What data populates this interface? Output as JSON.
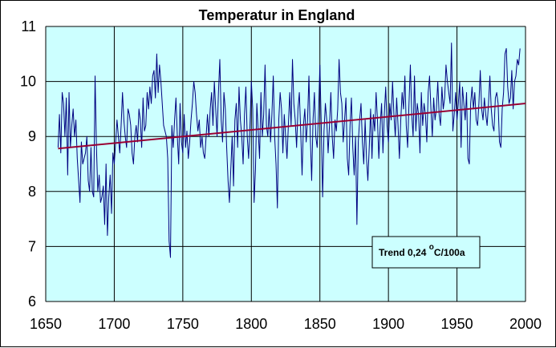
{
  "chart_data": {
    "type": "line",
    "title": "Temperatur in England",
    "xlabel": "",
    "ylabel": "",
    "xlim": [
      1650,
      2000
    ],
    "ylim": [
      6,
      11
    ],
    "x_ticks": [
      "1650",
      "1700",
      "1750",
      "1800",
      "1850",
      "1900",
      "1950",
      "2000"
    ],
    "y_ticks": [
      "6",
      "7",
      "8",
      "9",
      "10",
      "11"
    ],
    "grid": true,
    "legend": "none",
    "plot_background": "#ccffff",
    "annotation": {
      "prefix": "Trend 0,24 ",
      "superscript": "o",
      "suffix": "C/100a"
    },
    "series": [
      {
        "color": "#000080",
        "x_start": 1659,
        "x_step": 1,
        "values": [
          8.8,
          9.4,
          8.7,
          9.8,
          9.6,
          9.0,
          9.7,
          8.3,
          9.8,
          8.8,
          9.2,
          9.5,
          9.0,
          9.3,
          8.6,
          8.2,
          7.8,
          8.9,
          8.5,
          8.6,
          8.7,
          9.0,
          8.2,
          8.0,
          8.8,
          8.0,
          7.9,
          10.1,
          8.8,
          8.0,
          8.3,
          7.8,
          7.9,
          8.1,
          7.4,
          8.5,
          7.2,
          7.9,
          8.3,
          7.6,
          8.7,
          8.5,
          8.9,
          9.3,
          9.0,
          8.7,
          9.2,
          9.8,
          9.3,
          9.0,
          8.8,
          9.5,
          9.4,
          9.2,
          8.7,
          8.5,
          9.0,
          9.2,
          8.9,
          9.5,
          9.3,
          8.8,
          9.7,
          9.1,
          9.2,
          9.8,
          9.5,
          9.9,
          9.6,
          10.1,
          10.2,
          9.7,
          10.5,
          9.8,
          10.3,
          10.0,
          9.6,
          9.2,
          9.1,
          9.0,
          8.6,
          7.1,
          6.8,
          9.2,
          8.8,
          9.3,
          9.7,
          9.0,
          8.5,
          9.6,
          8.9,
          8.7,
          9.4,
          8.8,
          9.1,
          8.6,
          8.9,
          9.3,
          9.6,
          10.0,
          9.8,
          9.4,
          9.1,
          9.3,
          8.8,
          9.0,
          8.7,
          8.6,
          9.0,
          9.4,
          9.0,
          9.5,
          9.8,
          9.2,
          10.0,
          9.5,
          9.0,
          9.8,
          10.4,
          9.3,
          8.9,
          9.8,
          9.5,
          8.8,
          8.2,
          7.8,
          8.4,
          9.0,
          8.1,
          9.3,
          9.6,
          8.8,
          9.9,
          9.3,
          9.0,
          8.5,
          9.4,
          9.9,
          9.0,
          8.6,
          9.2,
          10.0,
          9.5,
          7.8,
          8.4,
          9.6,
          9.1,
          8.6,
          9.8,
          9.0,
          9.4,
          10.3,
          9.2,
          9.0,
          9.5,
          8.9,
          9.4,
          10.1,
          9.0,
          8.5,
          7.7,
          9.3,
          9.8,
          9.5,
          8.7,
          9.4,
          9.0,
          8.6,
          9.2,
          9.8,
          9.2,
          10.4,
          9.6,
          9.3,
          8.8,
          9.5,
          9.8,
          9.1,
          8.3,
          9.2,
          9.5,
          8.9,
          9.3,
          10.1,
          9.0,
          8.2,
          9.3,
          9.8,
          9.0,
          8.8,
          9.4,
          10.3,
          9.2,
          7.9,
          9.1,
          9.6,
          9.3,
          8.7,
          9.2,
          9.8,
          9.0,
          8.6,
          9.3,
          9.1,
          9.5,
          10.4,
          9.8,
          9.6,
          8.9,
          9.3,
          9.7,
          8.6,
          8.3,
          9.2,
          9.7,
          8.8,
          8.3,
          9.0,
          7.4,
          8.9,
          9.3,
          9.6,
          8.9,
          8.5,
          9.3,
          8.6,
          8.2,
          8.8,
          9.5,
          8.6,
          9.4,
          9.1,
          9.8,
          9.3,
          8.6,
          9.2,
          9.6,
          8.7,
          9.4,
          9.9,
          9.2,
          8.9,
          9.6,
          9.3,
          10.0,
          9.4,
          9.0,
          9.7,
          9.2,
          8.6,
          9.3,
          9.8,
          9.5,
          10.1,
          9.2,
          8.8,
          9.6,
          10.3,
          9.4,
          9.0,
          10.1,
          9.1,
          9.6,
          9.4,
          8.7,
          9.8,
          9.2,
          9.6,
          9.4,
          8.9,
          9.8,
          10.1,
          9.5,
          9.0,
          9.7,
          9.3,
          9.5,
          10.0,
          9.4,
          9.2,
          9.9,
          9.5,
          9.7,
          10.3,
          10.0,
          9.8,
          9.6,
          10.7,
          9.1,
          9.4,
          9.8,
          9.3,
          9.6,
          10.0,
          8.8,
          9.9,
          9.6,
          9.3,
          9.8,
          8.6,
          8.5,
          9.6,
          9.9,
          9.5,
          9.8,
          9.3,
          9.2,
          9.6,
          10.2,
          9.5,
          9.3,
          9.7,
          9.4,
          9.2,
          9.6,
          10.1,
          9.5,
          9.2,
          9.1,
          9.7,
          9.8,
          9.6,
          8.9,
          8.8,
          9.5,
          9.8,
          10.5,
          10.6,
          9.9,
          9.6,
          9.7,
          10.2,
          9.5,
          10.0,
          10.1,
          10.4,
          10.3,
          10.6
        ]
      },
      {
        "type": "trend",
        "color": "#990033",
        "x": [
          1659,
          2000
        ],
        "values": [
          8.78,
          9.6
        ]
      }
    ]
  }
}
